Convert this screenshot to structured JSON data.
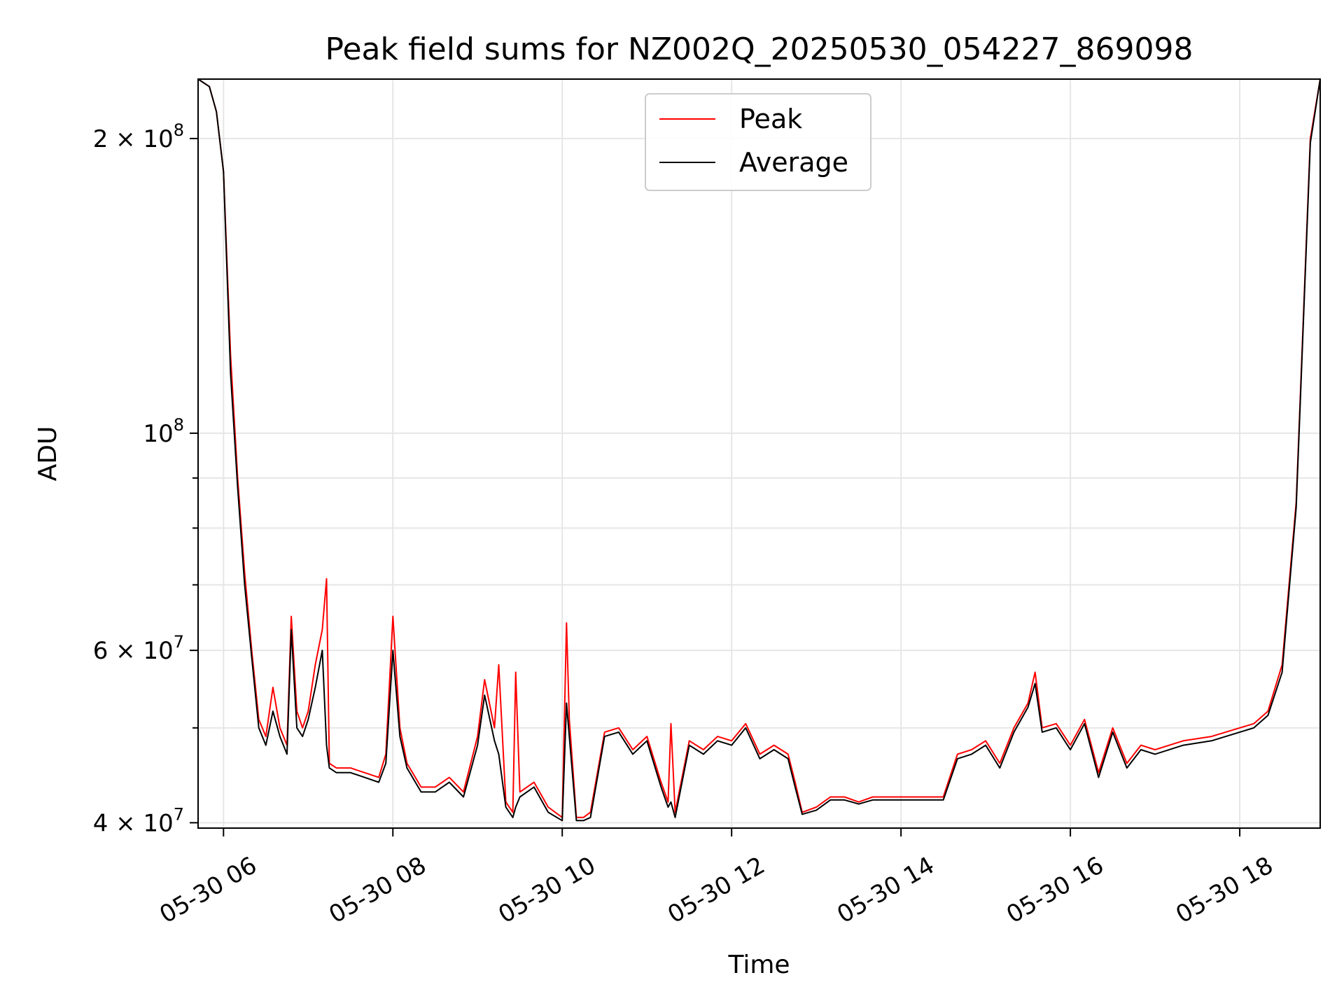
{
  "chart_data": {
    "type": "line",
    "title": "Peak field sums for NZ002Q_20250530_054227_869098",
    "xlabel": "Time",
    "ylabel": "ADU",
    "yscale": "log",
    "grid": true,
    "legend_position": "top-center",
    "xlim": [
      "05-30 05:42",
      "05-30 18:57"
    ],
    "ylim": [
      39500000,
      230000000
    ],
    "x_ticks": [
      "05-30 06",
      "05-30 08",
      "05-30 10",
      "05-30 12",
      "05-30 14",
      "05-30 16",
      "05-30 18"
    ],
    "y_ticks": [
      {
        "value": 40000000,
        "base": "4",
        "exp": "7"
      },
      {
        "value": 60000000,
        "base": "6",
        "exp": "7"
      },
      {
        "value": 100000000,
        "base": "10",
        "exp": "8"
      },
      {
        "value": 200000000,
        "base": "2",
        "exp": "8"
      }
    ],
    "series": [
      {
        "name": "Peak",
        "color": "#ff0000",
        "x": [
          "05-30 05:42",
          "05-30 05:50",
          "05-30 05:55",
          "05-30 06:00",
          "05-30 06:05",
          "05-30 06:10",
          "05-30 06:15",
          "05-30 06:20",
          "05-30 06:25",
          "05-30 06:30",
          "05-30 06:35",
          "05-30 06:40",
          "05-30 06:45",
          "05-30 06:48",
          "05-30 06:52",
          "05-30 06:56",
          "05-30 07:00",
          "05-30 07:05",
          "05-30 07:10",
          "05-30 07:13",
          "05-30 07:15",
          "05-30 07:20",
          "05-30 07:30",
          "05-30 07:40",
          "05-30 07:50",
          "05-30 07:55",
          "05-30 08:00",
          "05-30 08:05",
          "05-30 08:10",
          "05-30 08:20",
          "05-30 08:30",
          "05-30 08:40",
          "05-30 08:50",
          "05-30 09:00",
          "05-30 09:05",
          "05-30 09:12",
          "05-30 09:15",
          "05-30 09:20",
          "05-30 09:25",
          "05-30 09:27",
          "05-30 09:30",
          "05-30 09:40",
          "05-30 09:50",
          "05-30 10:00",
          "05-30 10:03",
          "05-30 10:05",
          "05-30 10:10",
          "05-30 10:15",
          "05-30 10:20",
          "05-30 10:30",
          "05-30 10:40",
          "05-30 10:50",
          "05-30 11:00",
          "05-30 11:10",
          "05-30 11:15",
          "05-30 11:17",
          "05-30 11:20",
          "05-30 11:30",
          "05-30 11:40",
          "05-30 11:50",
          "05-30 12:00",
          "05-30 12:10",
          "05-30 12:20",
          "05-30 12:30",
          "05-30 12:40",
          "05-30 12:45",
          "05-30 12:50",
          "05-30 13:00",
          "05-30 13:10",
          "05-30 13:20",
          "05-30 13:30",
          "05-30 13:40",
          "05-30 13:50",
          "05-30 14:00",
          "05-30 14:10",
          "05-30 14:20",
          "05-30 14:30",
          "05-30 14:40",
          "05-30 14:50",
          "05-30 15:00",
          "05-30 15:10",
          "05-30 15:20",
          "05-30 15:30",
          "05-30 15:35",
          "05-30 15:40",
          "05-30 15:50",
          "05-30 16:00",
          "05-30 16:10",
          "05-30 16:20",
          "05-30 16:30",
          "05-30 16:40",
          "05-30 16:50",
          "05-30 17:00",
          "05-30 17:20",
          "05-30 17:40",
          "05-30 18:00",
          "05-30 18:10",
          "05-30 18:20",
          "05-30 18:30",
          "05-30 18:40",
          "05-30 18:50",
          "05-30 18:57"
        ],
        "values": [
          230000000,
          226000000,
          213000000,
          185000000,
          120000000,
          90000000,
          72000000,
          60000000,
          51000000,
          49000000,
          55000000,
          50000000,
          48000000,
          65000000,
          52000000,
          50000000,
          52000000,
          58000000,
          63000000,
          71000000,
          46000000,
          45500000,
          45500000,
          45000000,
          44500000,
          47000000,
          65000000,
          50000000,
          46000000,
          43500000,
          43500000,
          44500000,
          43000000,
          49000000,
          56000000,
          50000000,
          58000000,
          42000000,
          41000000,
          57000000,
          43000000,
          44000000,
          41500000,
          40500000,
          64000000,
          51000000,
          40500000,
          40500000,
          41000000,
          49500000,
          50000000,
          47500000,
          49000000,
          44000000,
          42000000,
          50500000,
          41000000,
          48500000,
          47500000,
          49000000,
          48500000,
          50500000,
          47000000,
          48000000,
          47000000,
          44000000,
          41000000,
          41500000,
          42500000,
          42500000,
          42000000,
          42500000,
          42500000,
          42500000,
          42500000,
          42500000,
          42500000,
          47000000,
          47500000,
          48500000,
          46000000,
          50000000,
          53000000,
          57000000,
          50000000,
          50500000,
          48000000,
          51000000,
          45000000,
          50000000,
          46000000,
          48000000,
          47500000,
          48500000,
          49000000,
          50000000,
          50500000,
          52000000,
          58000000,
          85000000,
          200000000,
          230000000
        ]
      },
      {
        "name": "Average",
        "color": "#000000",
        "x": [
          "05-30 05:42",
          "05-30 05:50",
          "05-30 05:55",
          "05-30 06:00",
          "05-30 06:05",
          "05-30 06:10",
          "05-30 06:15",
          "05-30 06:20",
          "05-30 06:25",
          "05-30 06:30",
          "05-30 06:35",
          "05-30 06:40",
          "05-30 06:45",
          "05-30 06:48",
          "05-30 06:52",
          "05-30 06:56",
          "05-30 07:00",
          "05-30 07:05",
          "05-30 07:10",
          "05-30 07:13",
          "05-30 07:15",
          "05-30 07:20",
          "05-30 07:30",
          "05-30 07:40",
          "05-30 07:50",
          "05-30 07:55",
          "05-30 08:00",
          "05-30 08:05",
          "05-30 08:10",
          "05-30 08:20",
          "05-30 08:30",
          "05-30 08:40",
          "05-30 08:50",
          "05-30 09:00",
          "05-30 09:05",
          "05-30 09:12",
          "05-30 09:15",
          "05-30 09:20",
          "05-30 09:25",
          "05-30 09:27",
          "05-30 09:30",
          "05-30 09:40",
          "05-30 09:50",
          "05-30 10:00",
          "05-30 10:03",
          "05-30 10:05",
          "05-30 10:10",
          "05-30 10:15",
          "05-30 10:20",
          "05-30 10:30",
          "05-30 10:40",
          "05-30 10:50",
          "05-30 11:00",
          "05-30 11:10",
          "05-30 11:15",
          "05-30 11:17",
          "05-30 11:20",
          "05-30 11:30",
          "05-30 11:40",
          "05-30 11:50",
          "05-30 12:00",
          "05-30 12:10",
          "05-30 12:20",
          "05-30 12:30",
          "05-30 12:40",
          "05-30 12:45",
          "05-30 12:50",
          "05-30 13:00",
          "05-30 13:10",
          "05-30 13:20",
          "05-30 13:30",
          "05-30 13:40",
          "05-30 13:50",
          "05-30 14:00",
          "05-30 14:10",
          "05-30 14:20",
          "05-30 14:30",
          "05-30 14:40",
          "05-30 14:50",
          "05-30 15:00",
          "05-30 15:10",
          "05-30 15:20",
          "05-30 15:30",
          "05-30 15:35",
          "05-30 15:40",
          "05-30 15:50",
          "05-30 16:00",
          "05-30 16:10",
          "05-30 16:20",
          "05-30 16:30",
          "05-30 16:40",
          "05-30 16:50",
          "05-30 17:00",
          "05-30 17:20",
          "05-30 17:40",
          "05-30 18:00",
          "05-30 18:10",
          "05-30 18:20",
          "05-30 18:30",
          "05-30 18:40",
          "05-30 18:50",
          "05-30 18:57"
        ],
        "values": [
          230000000,
          226000000,
          213000000,
          185000000,
          115000000,
          88000000,
          70000000,
          59000000,
          50000000,
          48000000,
          52000000,
          49000000,
          47000000,
          63000000,
          50000000,
          49000000,
          51000000,
          55000000,
          60000000,
          48000000,
          45500000,
          45000000,
          45000000,
          44500000,
          44000000,
          46000000,
          60000000,
          49000000,
          45500000,
          43000000,
          43000000,
          44000000,
          42500000,
          48000000,
          54000000,
          48500000,
          47000000,
          41500000,
          40500000,
          41500000,
          42500000,
          43500000,
          41000000,
          40200000,
          53000000,
          49000000,
          40200000,
          40200000,
          40500000,
          49000000,
          49500000,
          47000000,
          48500000,
          43500000,
          41500000,
          42000000,
          40500000,
          48000000,
          47000000,
          48500000,
          48000000,
          50000000,
          46500000,
          47500000,
          46500000,
          43500000,
          40800000,
          41200000,
          42200000,
          42200000,
          41800000,
          42200000,
          42200000,
          42200000,
          42200000,
          42200000,
          42200000,
          46500000,
          47000000,
          48000000,
          45500000,
          49500000,
          52500000,
          55500000,
          49500000,
          50000000,
          47500000,
          50500000,
          44500000,
          49500000,
          45500000,
          47500000,
          47000000,
          48000000,
          48500000,
          49500000,
          50000000,
          51500000,
          57000000,
          84000000,
          198000000,
          230000000
        ]
      }
    ]
  }
}
